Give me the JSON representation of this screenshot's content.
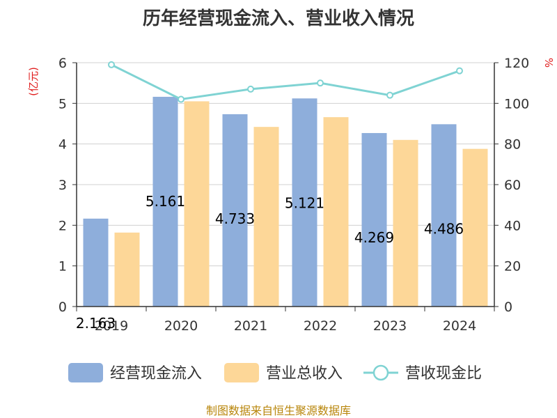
{
  "title": "历年经营现金流入、营业收入情况",
  "source": "制图数据来自恒生聚源数据库",
  "chart_data": {
    "type": "bar",
    "categories": [
      "2019",
      "2020",
      "2021",
      "2022",
      "2023",
      "2024"
    ],
    "series": [
      {
        "name": "经营现金流入",
        "type": "bar",
        "axis": "left",
        "color": "#8eaedb",
        "values": [
          2.163,
          5.161,
          4.733,
          5.121,
          4.269,
          4.486
        ],
        "labels": [
          "2.163",
          "5.161",
          "4.733",
          "5.121",
          "4.269",
          "4.486"
        ]
      },
      {
        "name": "营业总收入",
        "type": "bar",
        "axis": "left",
        "color": "#fdd798",
        "values": [
          1.82,
          5.05,
          4.42,
          4.66,
          4.1,
          3.88
        ]
      },
      {
        "name": "营收现金比",
        "type": "line",
        "axis": "right",
        "color": "#7fd3d3",
        "values": [
          119,
          102,
          107,
          110,
          104,
          116
        ]
      }
    ],
    "y_left": {
      "unit": "(亿元)",
      "ylim": [
        0,
        6
      ],
      "ticks": [
        "0",
        "1",
        "2",
        "3",
        "4",
        "5",
        "6"
      ]
    },
    "y_right": {
      "unit": "%",
      "ylim": [
        0,
        120
      ],
      "ticks": [
        "0",
        "20",
        "40",
        "60",
        "80",
        "100",
        "120"
      ]
    },
    "grid": true,
    "legend_position": "bottom"
  }
}
